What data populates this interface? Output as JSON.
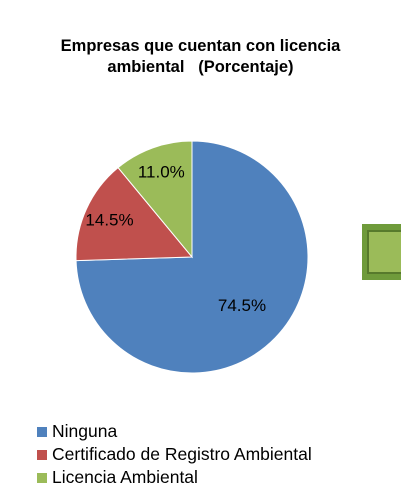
{
  "chart_data": {
    "type": "pie",
    "title_lines": [
      "Empresas que cuentan con licencia",
      "ambiental   (Porcentaje)"
    ],
    "categories": [
      "Ninguna",
      "Certificado de Registro Ambiental",
      "Licencia Ambiental"
    ],
    "values": [
      74.5,
      14.5,
      11.0
    ],
    "value_labels": [
      "74.5%",
      "14.5%",
      "11.0%"
    ],
    "colors": [
      "#4f81bd",
      "#c0504d",
      "#9bbb59"
    ],
    "legend_position": "bottom-left",
    "start_angle": "top",
    "direction": "clockwise"
  },
  "decoration": {
    "box_color": "#9bbb59"
  }
}
